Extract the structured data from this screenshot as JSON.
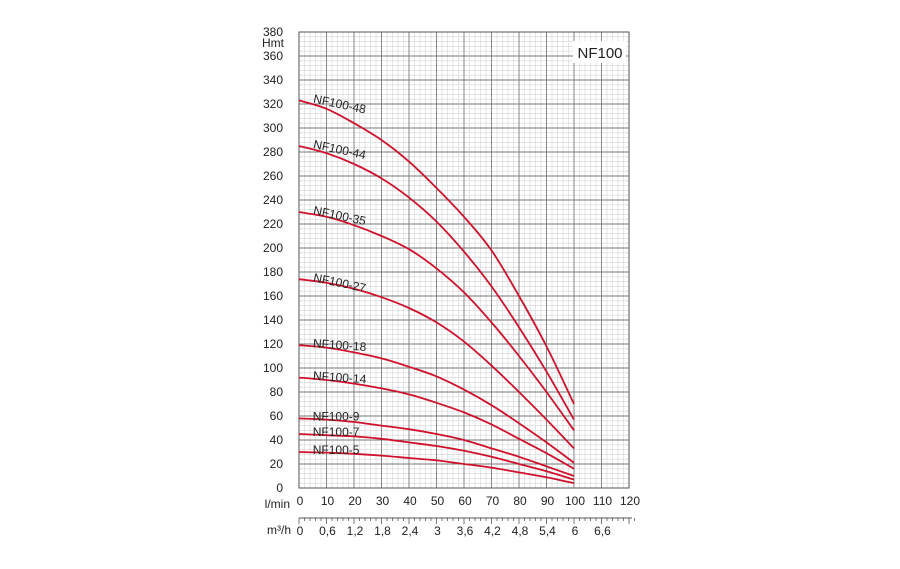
{
  "chart_data": {
    "type": "line",
    "title": "NF100",
    "ylabel": "Hmt",
    "xlabel": "l/min",
    "x2label": "m³/h",
    "xlim": [
      0,
      120
    ],
    "ylim": [
      0,
      380
    ],
    "grid": true,
    "x_ticks": [
      0,
      10,
      20,
      30,
      40,
      50,
      60,
      70,
      80,
      90,
      100,
      110,
      120
    ],
    "x_tick_labels": [
      "0",
      "10",
      "20",
      "30",
      "40",
      "50",
      "60",
      "70",
      "80",
      "90",
      "100",
      "110",
      "120"
    ],
    "x2_ticks": [
      0,
      10,
      20,
      30,
      40,
      50,
      60,
      70,
      80,
      90,
      100,
      110
    ],
    "x2_tick_labels": [
      "0",
      "0,6",
      "1,2",
      "1,8",
      "2,4",
      "3",
      "3,6",
      "4,2",
      "4,8",
      "5,4",
      "6",
      "6,6"
    ],
    "y_ticks": [
      0,
      20,
      40,
      60,
      80,
      100,
      120,
      140,
      160,
      180,
      200,
      220,
      240,
      260,
      280,
      300,
      320,
      340,
      360,
      380
    ],
    "y_tick_labels": [
      "0",
      "20",
      "40",
      "60",
      "80",
      "100",
      "120",
      "140",
      "160",
      "180",
      "200",
      "220",
      "240",
      "260",
      "280",
      "300",
      "320",
      "340",
      "360",
      "380"
    ],
    "series_color": "#d0112b",
    "series": [
      {
        "name": "NF100-48",
        "x": [
          0,
          10,
          20,
          30,
          40,
          50,
          60,
          70,
          80,
          90,
          100
        ],
        "y": [
          323,
          316,
          304,
          290,
          272,
          250,
          226,
          198,
          160,
          118,
          70
        ]
      },
      {
        "name": "NF100-44",
        "x": [
          0,
          10,
          20,
          30,
          40,
          50,
          60,
          70,
          80,
          90,
          100
        ],
        "y": [
          285,
          279,
          270,
          258,
          242,
          222,
          197,
          168,
          134,
          97,
          57
        ]
      },
      {
        "name": "NF100-35",
        "x": [
          0,
          10,
          20,
          30,
          40,
          50,
          60,
          70,
          80,
          90,
          100
        ],
        "y": [
          230,
          226,
          219,
          210,
          199,
          183,
          163,
          138,
          110,
          80,
          48
        ]
      },
      {
        "name": "NF100-27",
        "x": [
          0,
          10,
          20,
          30,
          40,
          50,
          60,
          70,
          80,
          90,
          100
        ],
        "y": [
          174,
          171,
          166,
          159,
          150,
          138,
          122,
          102,
          80,
          57,
          33
        ]
      },
      {
        "name": "NF100-18",
        "x": [
          0,
          10,
          20,
          30,
          40,
          50,
          60,
          70,
          80,
          90,
          100
        ],
        "y": [
          119,
          117,
          113,
          108,
          101,
          93,
          82,
          69,
          54,
          38,
          21
        ]
      },
      {
        "name": "NF100-14",
        "x": [
          0,
          10,
          20,
          30,
          40,
          50,
          60,
          70,
          80,
          90,
          100
        ],
        "y": [
          92,
          90,
          87,
          83,
          78,
          71,
          63,
          53,
          41,
          29,
          16
        ]
      },
      {
        "name": "NF100-9",
        "x": [
          0,
          10,
          20,
          30,
          40,
          50,
          60,
          70,
          80,
          90,
          100
        ],
        "y": [
          58,
          57,
          55,
          52,
          49,
          45,
          40,
          33,
          26,
          18,
          10
        ]
      },
      {
        "name": "NF100-7",
        "x": [
          0,
          10,
          20,
          30,
          40,
          50,
          60,
          70,
          80,
          90,
          100
        ],
        "y": [
          45,
          44,
          43,
          41,
          38,
          35,
          31,
          26,
          20,
          14,
          7
        ]
      },
      {
        "name": "NF100-5",
        "x": [
          0,
          10,
          20,
          30,
          40,
          50,
          60,
          70,
          80,
          90,
          100
        ],
        "y": [
          30,
          29.5,
          28.5,
          27,
          25,
          23,
          20,
          17,
          13,
          9,
          4
        ]
      }
    ]
  }
}
